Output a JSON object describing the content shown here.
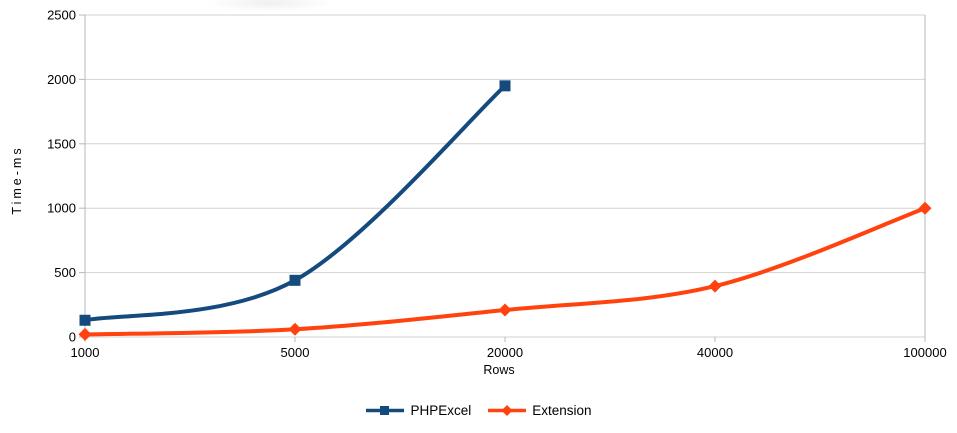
{
  "chart_data": {
    "type": "line",
    "title": "",
    "xlabel": "Rows",
    "ylabel": "Time-ms",
    "categories": [
      "1000",
      "5000",
      "20000",
      "40000",
      "100000"
    ],
    "y_ticks": [
      0,
      500,
      1000,
      1500,
      2000,
      2500
    ],
    "ylim": [
      0,
      2500
    ],
    "grid": "horizontal",
    "legend_position": "bottom",
    "smoothed_lines": true,
    "series": [
      {
        "name": "PHPExcel",
        "marker": "square",
        "color": "#154a7e",
        "values": [
          130,
          440,
          1950
        ]
      },
      {
        "name": "Extension",
        "marker": "diamond",
        "color": "#ff420e",
        "values": [
          20,
          60,
          210,
          395,
          1000
        ]
      }
    ],
    "style_colors": {
      "gridline": "#d2d2d2",
      "axis_frame": "#b9b9b9",
      "background": "#ffffff",
      "text": "#000000"
    }
  }
}
